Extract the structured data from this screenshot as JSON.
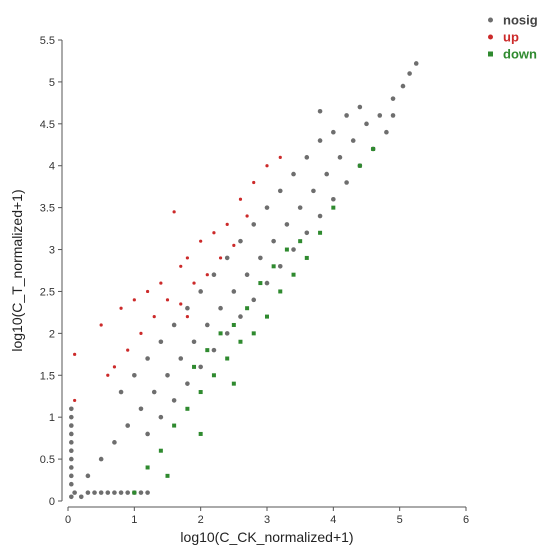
{
  "chart_data": {
    "type": "scatter",
    "xlabel": "log10(C_CK_normalized+1)",
    "ylabel": "log10(C_T_normalized+1)",
    "xlim": [
      0,
      6
    ],
    "ylim": [
      0,
      5.5
    ],
    "x_ticks": [
      "0",
      "1",
      "2",
      "3",
      "4",
      "5",
      "6"
    ],
    "y_ticks": [
      "0",
      "0.5",
      "1",
      "1.5",
      "2",
      "2.5",
      "3",
      "3.5",
      "4",
      "4.5",
      "5",
      "5.5"
    ],
    "grid": false,
    "legend_position": "top-right",
    "series": [
      {
        "name": "nosig",
        "color": "#6e6e6e",
        "marker": "circle",
        "points": [
          [
            0.05,
            0.05
          ],
          [
            0.1,
            0.1
          ],
          [
            0.2,
            0.05
          ],
          [
            0.3,
            0.1
          ],
          [
            0.4,
            0.1
          ],
          [
            0.5,
            0.1
          ],
          [
            0.6,
            0.1
          ],
          [
            0.7,
            0.1
          ],
          [
            0.8,
            0.1
          ],
          [
            0.9,
            0.1
          ],
          [
            1.0,
            0.1
          ],
          [
            1.1,
            0.1
          ],
          [
            1.2,
            0.1
          ],
          [
            0.05,
            0.2
          ],
          [
            0.05,
            0.3
          ],
          [
            0.05,
            0.4
          ],
          [
            0.05,
            0.5
          ],
          [
            0.05,
            0.6
          ],
          [
            0.05,
            0.7
          ],
          [
            0.05,
            0.8
          ],
          [
            0.05,
            0.9
          ],
          [
            0.05,
            1.0
          ],
          [
            0.05,
            1.1
          ],
          [
            0.3,
            0.3
          ],
          [
            0.5,
            0.5
          ],
          [
            0.7,
            0.7
          ],
          [
            0.9,
            0.9
          ],
          [
            1.1,
            1.1
          ],
          [
            1.3,
            1.3
          ],
          [
            1.5,
            1.5
          ],
          [
            1.7,
            1.7
          ],
          [
            1.9,
            1.9
          ],
          [
            2.1,
            2.1
          ],
          [
            2.3,
            2.3
          ],
          [
            2.5,
            2.5
          ],
          [
            2.7,
            2.7
          ],
          [
            2.9,
            2.9
          ],
          [
            3.1,
            3.1
          ],
          [
            3.3,
            3.3
          ],
          [
            3.5,
            3.5
          ],
          [
            3.7,
            3.7
          ],
          [
            3.9,
            3.9
          ],
          [
            4.1,
            4.1
          ],
          [
            4.3,
            4.3
          ],
          [
            4.5,
            4.5
          ],
          [
            4.7,
            4.6
          ],
          [
            4.9,
            4.8
          ],
          [
            5.05,
            4.95
          ],
          [
            5.15,
            5.1
          ],
          [
            5.25,
            5.22
          ],
          [
            0.8,
            1.3
          ],
          [
            1.0,
            1.5
          ],
          [
            1.2,
            1.7
          ],
          [
            1.4,
            1.9
          ],
          [
            1.6,
            2.1
          ],
          [
            1.8,
            2.3
          ],
          [
            2.0,
            2.5
          ],
          [
            2.2,
            2.7
          ],
          [
            2.4,
            2.9
          ],
          [
            2.6,
            3.1
          ],
          [
            2.8,
            3.3
          ],
          [
            3.0,
            3.5
          ],
          [
            3.2,
            3.7
          ],
          [
            3.4,
            3.9
          ],
          [
            3.6,
            4.1
          ],
          [
            3.8,
            4.3
          ],
          [
            4.0,
            4.4
          ],
          [
            4.2,
            4.6
          ],
          [
            3.8,
            4.65
          ],
          [
            4.4,
            4.7
          ],
          [
            1.2,
            0.8
          ],
          [
            1.4,
            1.0
          ],
          [
            1.6,
            1.2
          ],
          [
            1.8,
            1.4
          ],
          [
            2.0,
            1.6
          ],
          [
            2.2,
            1.8
          ],
          [
            2.4,
            2.0
          ],
          [
            2.6,
            2.2
          ],
          [
            2.8,
            2.4
          ],
          [
            3.0,
            2.6
          ],
          [
            3.2,
            2.8
          ],
          [
            3.4,
            3.0
          ],
          [
            3.6,
            3.2
          ],
          [
            3.8,
            3.4
          ],
          [
            4.0,
            3.6
          ],
          [
            4.2,
            3.8
          ],
          [
            4.4,
            4.0
          ],
          [
            4.6,
            4.2
          ],
          [
            4.8,
            4.4
          ],
          [
            4.9,
            4.6
          ]
        ]
      },
      {
        "name": "up",
        "color": "#cc2a2a",
        "marker": "circle",
        "points": [
          [
            0.1,
            1.75
          ],
          [
            0.1,
            1.2
          ],
          [
            0.5,
            2.1
          ],
          [
            0.8,
            2.3
          ],
          [
            1.0,
            2.4
          ],
          [
            1.2,
            2.5
          ],
          [
            1.4,
            2.6
          ],
          [
            1.6,
            3.45
          ],
          [
            1.7,
            2.8
          ],
          [
            1.8,
            2.9
          ],
          [
            2.0,
            3.1
          ],
          [
            2.2,
            3.2
          ],
          [
            2.4,
            3.3
          ],
          [
            2.6,
            3.6
          ],
          [
            2.8,
            3.8
          ],
          [
            3.0,
            4.0
          ],
          [
            3.2,
            4.1
          ],
          [
            0.9,
            1.8
          ],
          [
            1.1,
            2.0
          ],
          [
            1.3,
            2.2
          ],
          [
            1.5,
            2.4
          ],
          [
            1.7,
            2.35
          ],
          [
            1.9,
            2.6
          ],
          [
            2.1,
            2.7
          ],
          [
            2.3,
            2.9
          ],
          [
            2.5,
            3.05
          ],
          [
            2.7,
            3.4
          ],
          [
            0.6,
            1.5
          ],
          [
            0.7,
            1.6
          ],
          [
            1.8,
            2.2
          ]
        ]
      },
      {
        "name": "down",
        "color": "#2f8a2f",
        "marker": "square",
        "points": [
          [
            1.0,
            0.1
          ],
          [
            1.2,
            0.4
          ],
          [
            1.4,
            0.6
          ],
          [
            1.6,
            0.9
          ],
          [
            1.8,
            1.1
          ],
          [
            2.0,
            1.3
          ],
          [
            2.2,
            1.5
          ],
          [
            2.4,
            1.7
          ],
          [
            2.6,
            1.9
          ],
          [
            2.8,
            2.0
          ],
          [
            3.0,
            2.2
          ],
          [
            3.2,
            2.5
          ],
          [
            3.4,
            2.7
          ],
          [
            3.6,
            2.9
          ],
          [
            3.8,
            3.2
          ],
          [
            4.0,
            3.5
          ],
          [
            4.4,
            4.0
          ],
          [
            4.6,
            4.2
          ],
          [
            1.9,
            1.6
          ],
          [
            2.1,
            1.8
          ],
          [
            2.3,
            2.0
          ],
          [
            2.5,
            2.1
          ],
          [
            2.7,
            2.3
          ],
          [
            2.9,
            2.6
          ],
          [
            3.1,
            2.8
          ],
          [
            3.3,
            3.0
          ],
          [
            3.5,
            3.1
          ],
          [
            1.5,
            0.3
          ],
          [
            2.0,
            0.8
          ],
          [
            2.5,
            1.4
          ]
        ]
      }
    ]
  }
}
